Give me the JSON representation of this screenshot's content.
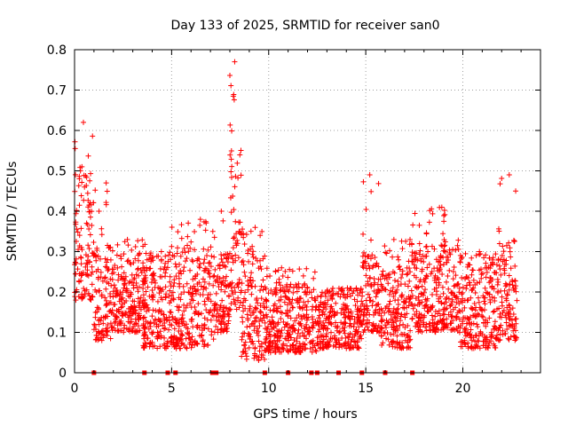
{
  "chart_data": {
    "type": "scatter",
    "title": "Day 133 of 2025, SRMTID for receiver san0",
    "xlabel": "GPS time / hours",
    "ylabel": "SRMTID / TECUs",
    "xlim": [
      0,
      24
    ],
    "ylim": [
      0,
      0.8
    ],
    "grid": true,
    "x_ticks": [
      0,
      5,
      10,
      15,
      20
    ],
    "y_ticks": [
      0,
      0.1,
      0.2,
      0.3,
      0.4,
      0.5,
      0.6,
      0.7,
      0.8
    ],
    "x_tick_labels": [
      "0",
      "5",
      "10",
      "15",
      "20"
    ],
    "y_tick_labels": [
      "0",
      "0.1",
      "0.2",
      "0.3",
      "0.4",
      "0.5",
      "0.6",
      "0.7",
      "0.8"
    ],
    "series_color": "#ff0000",
    "marker": "plus",
    "segments": [
      {
        "x": [
          0.0,
          1.0
        ],
        "y": [
          0.18,
          0.52
        ],
        "peak": 0.62
      },
      {
        "x": [
          1.0,
          1.9
        ],
        "y": [
          0.08,
          0.32
        ],
        "peak": 0.47
      },
      {
        "x": [
          1.9,
          3.7
        ],
        "y": [
          0.1,
          0.3
        ],
        "peak": 0.33
      },
      {
        "x": [
          3.5,
          4.9
        ],
        "y": [
          0.06,
          0.28
        ],
        "peak": 0.3
      },
      {
        "x": [
          4.9,
          7.2
        ],
        "y": [
          0.06,
          0.3
        ],
        "peak": 0.38
      },
      {
        "x": [
          7.2,
          8.0
        ],
        "y": [
          0.1,
          0.3
        ],
        "peak": 0.4
      },
      {
        "x": [
          8.0,
          8.6
        ],
        "y": [
          0.15,
          0.57
        ],
        "peak": 0.77
      },
      {
        "x": [
          8.6,
          9.8
        ],
        "y": [
          0.03,
          0.3
        ],
        "peak": 0.36
      },
      {
        "x": [
          9.8,
          12.5
        ],
        "y": [
          0.05,
          0.22
        ],
        "peak": 0.26
      },
      {
        "x": [
          12.5,
          14.8
        ],
        "y": [
          0.06,
          0.2
        ],
        "peak": 0.21
      },
      {
        "x": [
          14.8,
          15.8
        ],
        "y": [
          0.1,
          0.3
        ],
        "peak": 0.49
      },
      {
        "x": [
          15.8,
          17.3
        ],
        "y": [
          0.06,
          0.26
        ],
        "peak": 0.33
      },
      {
        "x": [
          17.3,
          19.8
        ],
        "y": [
          0.1,
          0.32
        ],
        "peak": 0.41
      },
      {
        "x": [
          19.8,
          21.8
        ],
        "y": [
          0.06,
          0.28
        ],
        "peak": 0.3
      },
      {
        "x": [
          21.8,
          22.8
        ],
        "y": [
          0.08,
          0.33
        ],
        "peak": 0.49
      }
    ],
    "zero_markers_x": [
      1.0,
      3.6,
      4.8,
      5.2,
      7.1,
      7.3,
      9.8,
      11.0,
      12.2,
      12.5,
      13.6,
      14.8,
      16.0,
      17.4
    ]
  }
}
